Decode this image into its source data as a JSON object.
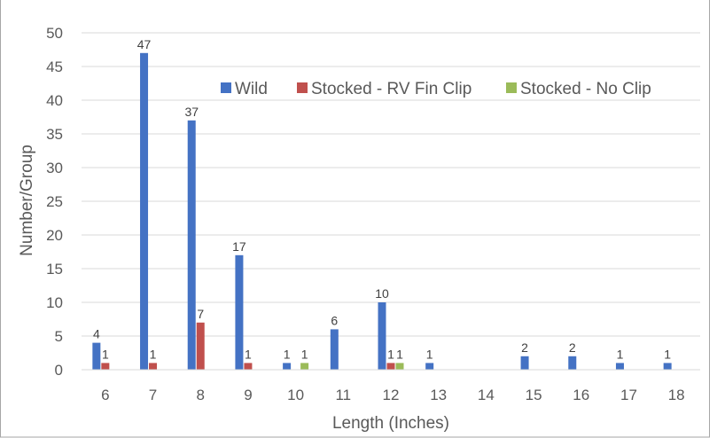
{
  "chart_data": {
    "type": "bar",
    "title": "",
    "xlabel": "Length (Inches)",
    "ylabel": "Number/Group",
    "ylim": [
      0,
      50
    ],
    "yticks": [
      0,
      5,
      10,
      15,
      20,
      25,
      30,
      35,
      40,
      45,
      50
    ],
    "grid": true,
    "legend_position": "top-right",
    "categories": [
      "6",
      "7",
      "8",
      "9",
      "10",
      "11",
      "12",
      "13",
      "14",
      "15",
      "16",
      "17",
      "18"
    ],
    "series": [
      {
        "name": "Wild",
        "color": "#4472c4",
        "values": [
          4,
          47,
          37,
          17,
          1,
          6,
          10,
          1,
          0,
          2,
          2,
          1,
          1
        ]
      },
      {
        "name": "Stocked - RV Fin Clip",
        "color": "#c0504d",
        "values": [
          1,
          1,
          7,
          1,
          0,
          0,
          1,
          0,
          0,
          0,
          0,
          0,
          0
        ]
      },
      {
        "name": "Stocked - No Clip",
        "color": "#9bbb59",
        "values": [
          0,
          0,
          0,
          0,
          1,
          0,
          1,
          0,
          0,
          0,
          0,
          0,
          0
        ]
      }
    ],
    "data_labels": true
  }
}
